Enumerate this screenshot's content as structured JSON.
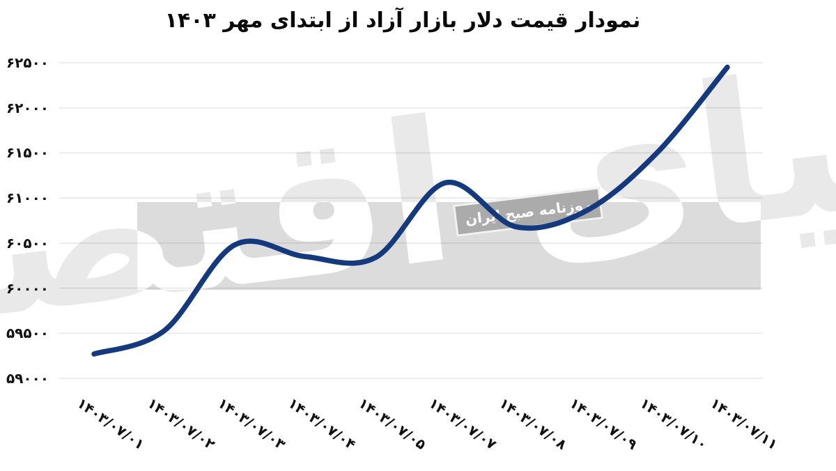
{
  "title": "نمودار قیمت دلار بازار آزاد از ابتدای مهر ۱۴۰۳",
  "watermark": {
    "big_text": "دنیای اقتصاد",
    "stamp_text": "روزنامه صبح ایران"
  },
  "colors": {
    "line": "#15397d",
    "band": "#dcdcdc",
    "stamp_bg": "#ababab",
    "grid": "rgba(0,0,0,0.085)",
    "axis_text": "#111111",
    "watermark_gray": "#e9e9e9",
    "watermark_white": "#ffffff"
  },
  "chart_data": {
    "type": "line",
    "title": "نمودار قیمت دلار بازار آزاد از ابتدای مهر ۱۴۰۳",
    "title_translation": "Chart of the free-market dollar price since the start of Mehr 1403",
    "categories": [
      "۱۴۰۳/۰۷/۰۱",
      "۱۴۰۳/۰۷/۰۲",
      "۱۴۰۳/۰۷/۰۳",
      "۱۴۰۳/۰۷/۰۴",
      "۱۴۰۳/۰۷/۰۵",
      "۱۴۰۳/۰۷/۰۷",
      "۱۴۰۳/۰۷/۰۸",
      "۱۴۰۳/۰۷/۰۹",
      "۱۴۰۳/۰۷/۱۰",
      "۱۴۰۳/۰۷/۱۱"
    ],
    "categories_latin": [
      "1403/07/01",
      "1403/07/02",
      "1403/07/03",
      "1403/07/04",
      "1403/07/05",
      "1403/07/07",
      "1403/07/08",
      "1403/07/09",
      "1403/07/10",
      "1403/07/11"
    ],
    "values": [
      59270,
      59530,
      60480,
      60350,
      60340,
      61170,
      60680,
      60860,
      61500,
      62450
    ],
    "y_ticks": [
      62500,
      62000,
      61500,
      61000,
      60500,
      60000,
      59500,
      59000
    ],
    "y_tick_labels": [
      "۶۲۵۰۰",
      "۶۲۰۰۰",
      "۶۱۵۰۰",
      "۶۱۰۰۰",
      "۶۰۵۰۰",
      "۶۰۰۰۰",
      "۵۹۵۰۰",
      "۵۹۰۰۰"
    ],
    "ylim": [
      59000,
      62500
    ],
    "xlabel": "",
    "ylabel": "",
    "grid": "horizontal",
    "legend": "none",
    "smoothing": "spline"
  }
}
